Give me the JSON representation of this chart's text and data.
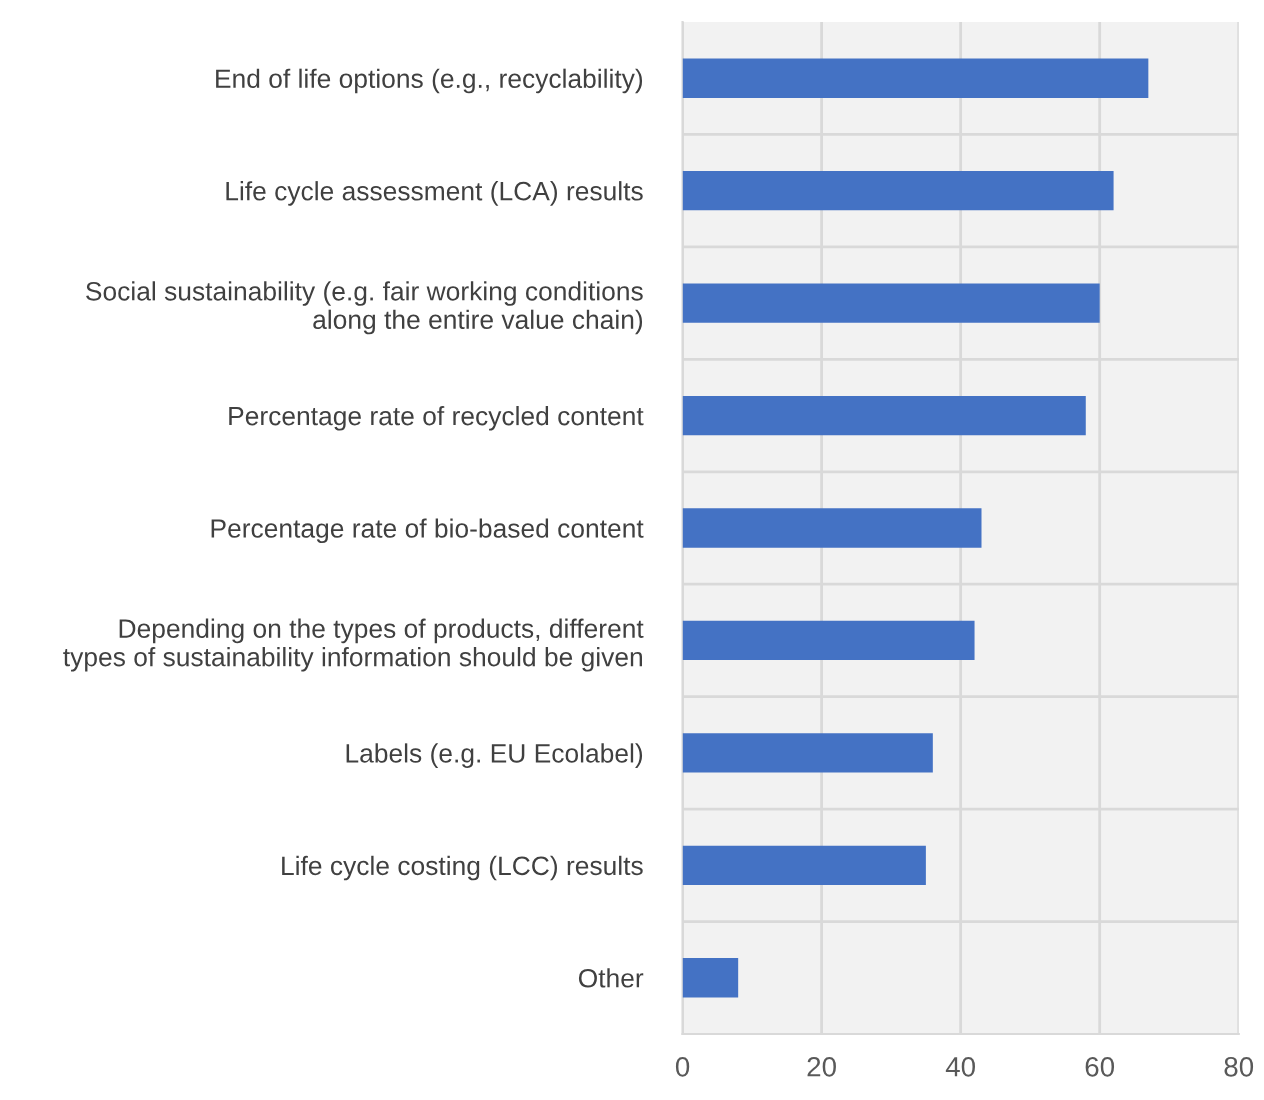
{
  "chart_data": {
    "type": "bar",
    "orientation": "horizontal",
    "categories": [
      "End of life options (e.g., recyclability)",
      "Life cycle assessment (LCA) results",
      "Social sustainability (e.g. fair working conditions\nalong the entire value chain)",
      "Percentage rate of recycled content",
      "Percentage rate of bio-based content",
      "Depending on the types of products, different\ntypes of sustainability information should be given",
      "Labels (e.g. EU Ecolabel)",
      "Life cycle costing (LCC) results",
      "Other"
    ],
    "values": [
      67,
      62,
      60,
      58,
      43,
      42,
      36,
      35,
      8
    ],
    "color": "#4472c4",
    "xlim": [
      0,
      80
    ],
    "xticks": [
      0,
      20,
      40,
      60,
      80
    ],
    "grid": true
  }
}
